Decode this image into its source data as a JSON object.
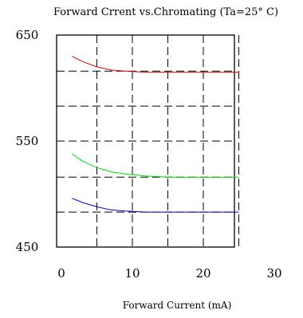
{
  "chart_data": {
    "type": "line",
    "title": "Forward Crrent vs.Chromating (Ta=25° C)",
    "xlabel": "Forward Current (mA)",
    "ylabel": "",
    "xlim": [
      0,
      30
    ],
    "ylim": [
      450,
      650
    ],
    "x_ticks": [
      "0",
      "10",
      "20",
      "30"
    ],
    "y_ticks": [
      "450",
      "550",
      "650"
    ],
    "grid": true,
    "series": [
      {
        "color": "#e00000",
        "x": [
          1.5,
          3,
          5,
          7,
          9,
          12,
          15,
          20,
          25
        ],
        "y": [
          630,
          625,
          620,
          617,
          616,
          615,
          615,
          615,
          615
        ]
      },
      {
        "color": "#00dd00",
        "x": [
          1.5,
          3,
          5,
          7,
          9,
          12,
          15,
          20,
          25
        ],
        "y": [
          538,
          531,
          525,
          521,
          519,
          517,
          516,
          516,
          516
        ]
      },
      {
        "color": "#0000cc",
        "x": [
          1.5,
          3,
          5,
          7,
          9,
          12,
          15,
          20,
          25
        ],
        "y": [
          496,
          492,
          488,
          485,
          484,
          483,
          483,
          483,
          483
        ]
      }
    ]
  }
}
